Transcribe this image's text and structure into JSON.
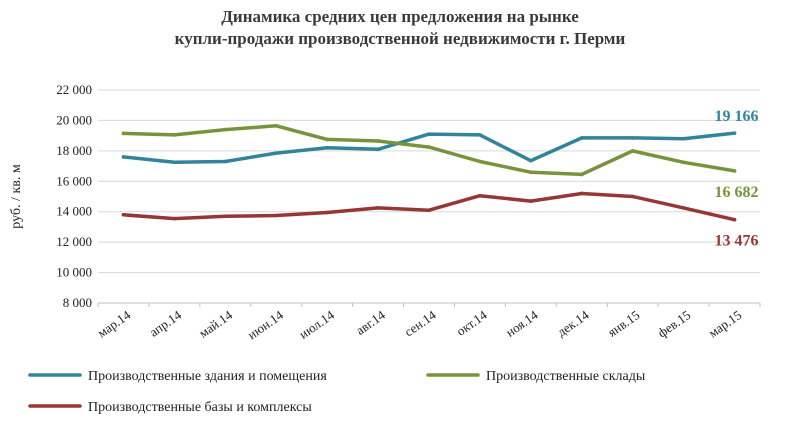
{
  "chart_data": {
    "type": "line",
    "title_line1": "Динамика средних цен предложения на рынке",
    "title_line2": "купли-продажи производственной недвижимости г. Перми",
    "xlabel": "",
    "ylabel": "руб. / кв. м",
    "ylim": [
      8000,
      22000
    ],
    "yticks": [
      "8 000",
      "10 000",
      "12 000",
      "14 000",
      "16 000",
      "18 000",
      "20 000",
      "22 000"
    ],
    "ytick_values": [
      8000,
      10000,
      12000,
      14000,
      16000,
      18000,
      20000,
      22000
    ],
    "categories": [
      "мар.14",
      "апр.14",
      "май.14",
      "июн.14",
      "июл.14",
      "авг.14",
      "сен.14",
      "окт.14",
      "ноя.14",
      "дек.14",
      "янв.15",
      "фев.15",
      "мар.15"
    ],
    "grid": true,
    "legend_position": "bottom",
    "series": [
      {
        "name": "Производственные здания и помещения",
        "color": "#31849b",
        "values": [
          17600,
          17250,
          17300,
          17850,
          18200,
          18100,
          19100,
          19050,
          17350,
          18850,
          18850,
          18800,
          19166
        ],
        "end_label": "19 166"
      },
      {
        "name": "Производственные склады",
        "color": "#77933c",
        "values": [
          19150,
          19050,
          19400,
          19650,
          18750,
          18650,
          18250,
          17300,
          16600,
          16450,
          18000,
          17250,
          16682
        ],
        "end_label": "16 682"
      },
      {
        "name": "Производственные базы и комплексы",
        "color": "#953735",
        "values": [
          13800,
          13550,
          13700,
          13750,
          13950,
          14250,
          14100,
          15050,
          14700,
          15200,
          15000,
          14250,
          13476
        ],
        "end_label": "13 476"
      }
    ]
  }
}
